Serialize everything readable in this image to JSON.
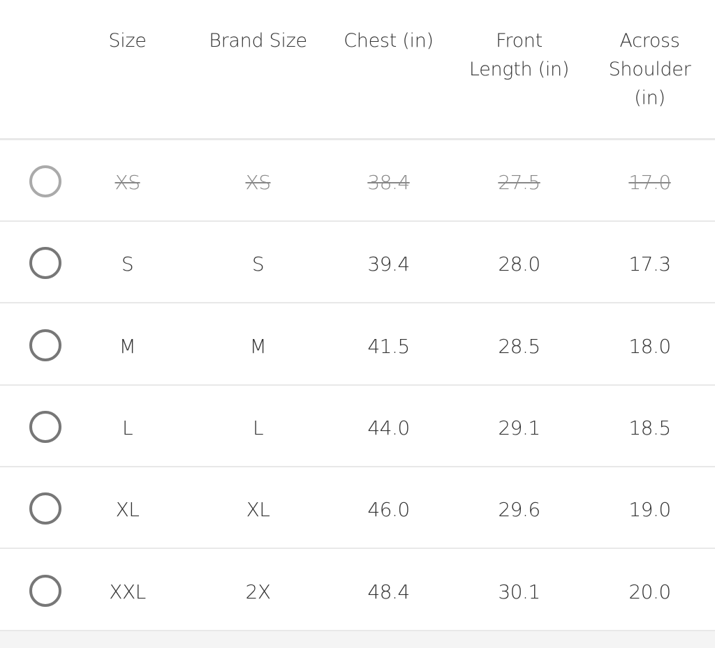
{
  "headers": [
    "Size",
    "Brand Size",
    "Chest (in)",
    "Front Length (in)",
    "Across Shoulder (in)"
  ],
  "header_lines": [
    [
      "Size"
    ],
    [
      "Brand Size"
    ],
    [
      "Chest (in)"
    ],
    [
      "Front",
      "Length (in)"
    ],
    [
      "Across",
      "Shoulder",
      "(in)"
    ]
  ],
  "rows": [
    {
      "size": "XS",
      "brand_size": "XS",
      "chest": "38.4",
      "front_length": "27.5",
      "across_shoulder": "17.0",
      "available": false,
      "selected": false
    },
    {
      "size": "S",
      "brand_size": "S",
      "chest": "39.4",
      "front_length": "28.0",
      "across_shoulder": "17.3",
      "available": true,
      "selected": false
    },
    {
      "size": "M",
      "brand_size": "M",
      "chest": "41.5",
      "front_length": "28.5",
      "across_shoulder": "18.0",
      "available": true,
      "selected": false
    },
    {
      "size": "L",
      "brand_size": "L",
      "chest": "44.0",
      "front_length": "29.1",
      "across_shoulder": "18.5",
      "available": true,
      "selected": false
    },
    {
      "size": "XL",
      "brand_size": "XL",
      "chest": "46.0",
      "front_length": "29.6",
      "across_shoulder": "19.0",
      "available": true,
      "selected": false
    },
    {
      "size": "XXL",
      "brand_size": "2X",
      "chest": "48.4",
      "front_length": "30.1",
      "across_shoulder": "20.0",
      "available": true,
      "selected": false
    }
  ],
  "colors": {
    "radio_border": "#777777",
    "disabled_text": "#888888",
    "divider": "#e8e8e8"
  }
}
